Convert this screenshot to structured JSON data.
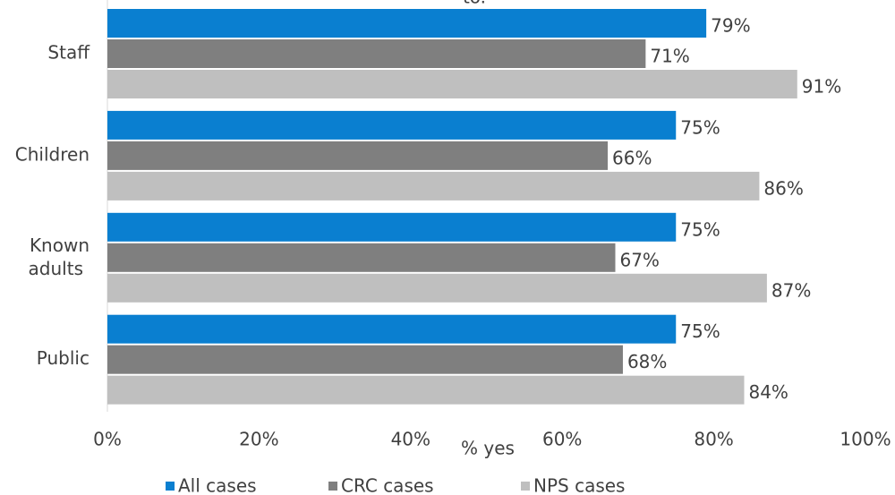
{
  "chart_data": {
    "type": "hbar",
    "title": "to.",
    "categories": [
      "Staff",
      "Children",
      "Known adults",
      "Public"
    ],
    "series": [
      {
        "name": "All cases",
        "color": "#0a7fd0",
        "values": [
          79,
          75,
          75,
          75
        ],
        "value_labels": [
          "79%",
          "75%",
          "75%",
          "75%"
        ]
      },
      {
        "name": "CRC cases",
        "color": "#7f7f7f",
        "values": [
          71,
          66,
          67,
          68
        ],
        "value_labels": [
          "71%",
          "66%",
          "67%",
          "68%"
        ]
      },
      {
        "name": "NPS cases",
        "color": "#bfbfbf",
        "values": [
          91,
          86,
          87,
          84
        ],
        "value_labels": [
          "91%",
          "86%",
          "87%",
          "84%"
        ]
      }
    ],
    "xlabel": "% yes",
    "xlim": [
      0,
      100
    ],
    "xticks": [
      {
        "value": 0,
        "label": "0%"
      },
      {
        "value": 20,
        "label": "20%"
      },
      {
        "value": 40,
        "label": "40%"
      },
      {
        "value": 60,
        "label": "60%"
      },
      {
        "value": 80,
        "label": "80%"
      },
      {
        "value": 100,
        "label": "100%"
      }
    ],
    "legend": "bottom"
  }
}
